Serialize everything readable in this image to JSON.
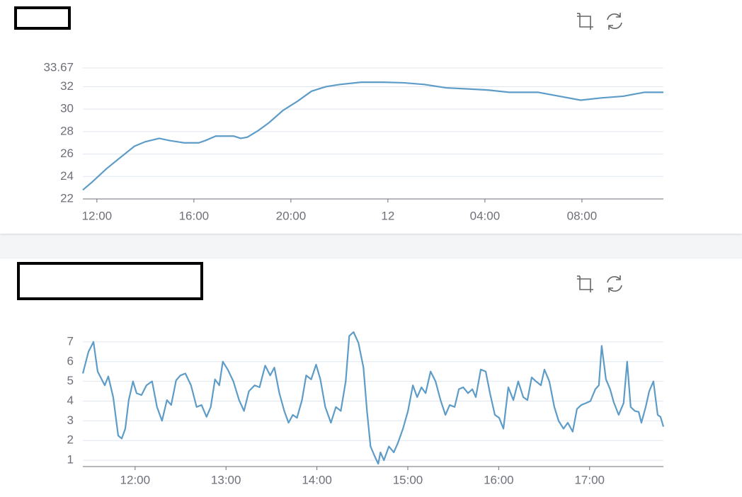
{
  "chart_data": [
    {
      "type": "line",
      "color": "#5e9cc8",
      "x": [
        11.42,
        11.8,
        12.4,
        12.97,
        13.55,
        14.0,
        14.57,
        15.0,
        15.6,
        16.2,
        16.47,
        16.9,
        17.64,
        17.93,
        18.2,
        18.66,
        19.1,
        19.68,
        20.27,
        20.85,
        21.44,
        22.02,
        22.9,
        23.8,
        24.65,
        25.5,
        26.4,
        27.3,
        28.15,
        29.0,
        30.2,
        31.07,
        31.95,
        32.8,
        33.7,
        34.57,
        35.36
      ],
      "values": [
        22.8,
        23.5,
        24.7,
        25.7,
        26.7,
        27.1,
        27.4,
        27.2,
        27.0,
        27.0,
        27.2,
        27.6,
        27.6,
        27.4,
        27.5,
        28.1,
        28.8,
        29.9,
        30.7,
        31.6,
        32.0,
        32.2,
        32.4,
        32.4,
        32.35,
        32.2,
        31.9,
        31.8,
        31.7,
        31.5,
        31.5,
        31.15,
        30.8,
        31.0,
        31.15,
        31.5,
        31.5
      ],
      "xlim": [
        11.42,
        35.36
      ],
      "xticks": [
        {
          "value": 12,
          "label": "12:00"
        },
        {
          "value": 16,
          "label": "16:00"
        },
        {
          "value": 20,
          "label": "20:00"
        },
        {
          "value": 24,
          "label": "12"
        },
        {
          "value": 28,
          "label": "04:00"
        },
        {
          "value": 32,
          "label": "08:00"
        }
      ],
      "ylim": [
        22,
        33.67
      ],
      "yticks": [
        22,
        24,
        26,
        28,
        30,
        32,
        33.67
      ],
      "grid": true
    },
    {
      "type": "line",
      "color": "#5e9cc8",
      "x": [
        11.425,
        11.487,
        11.542,
        11.588,
        11.666,
        11.705,
        11.759,
        11.814,
        11.853,
        11.892,
        11.93,
        11.977,
        12.016,
        12.07,
        12.125,
        12.187,
        12.241,
        12.296,
        12.35,
        12.397,
        12.451,
        12.498,
        12.553,
        12.615,
        12.677,
        12.731,
        12.786,
        12.832,
        12.879,
        12.926,
        12.965,
        13.019,
        13.081,
        13.144,
        13.198,
        13.252,
        13.315,
        13.369,
        13.431,
        13.486,
        13.532,
        13.587,
        13.641,
        13.688,
        13.735,
        13.781,
        13.836,
        13.882,
        13.937,
        13.991,
        14.038,
        14.092,
        14.154,
        14.209,
        14.263,
        14.317,
        14.356,
        14.403,
        14.457,
        14.512,
        14.551,
        14.59,
        14.636,
        14.675,
        14.699,
        14.737,
        14.792,
        14.846,
        14.893,
        14.947,
        15.002,
        15.056,
        15.103,
        15.15,
        15.196,
        15.251,
        15.305,
        15.36,
        15.414,
        15.461,
        15.515,
        15.562,
        15.609,
        15.663,
        15.71,
        15.748,
        15.803,
        15.857,
        15.904,
        15.958,
        16.005,
        16.052,
        16.106,
        16.161,
        16.215,
        16.27,
        16.316,
        16.363,
        16.41,
        16.464,
        16.503,
        16.557,
        16.612,
        16.659,
        16.713,
        16.76,
        16.814,
        16.861,
        16.908,
        16.962,
        17.009,
        17.063,
        17.102,
        17.133,
        17.18,
        17.226,
        17.265,
        17.32,
        17.374,
        17.413,
        17.452,
        17.498,
        17.54,
        17.57,
        17.617,
        17.656,
        17.702,
        17.749,
        17.78,
        17.812
      ],
      "values": [
        5.4,
        6.5,
        7.0,
        5.5,
        4.8,
        5.25,
        4.2,
        2.25,
        2.1,
        2.6,
        4.05,
        5.0,
        4.4,
        4.3,
        4.8,
        5.0,
        3.7,
        3.0,
        4.05,
        3.8,
        5.05,
        5.3,
        5.4,
        4.8,
        3.7,
        3.8,
        3.2,
        3.7,
        5.1,
        4.8,
        6.0,
        5.6,
        5.0,
        4.05,
        3.5,
        4.5,
        4.8,
        4.7,
        5.8,
        5.3,
        5.7,
        4.4,
        3.5,
        2.9,
        3.3,
        3.15,
        4.05,
        5.3,
        5.1,
        5.85,
        5.1,
        3.7,
        2.9,
        3.7,
        3.5,
        5.0,
        7.3,
        7.5,
        6.95,
        5.7,
        3.5,
        1.7,
        1.2,
        0.82,
        1.4,
        1.0,
        1.7,
        1.4,
        1.9,
        2.6,
        3.5,
        4.8,
        4.2,
        4.7,
        4.4,
        5.5,
        5.0,
        4.05,
        3.3,
        3.8,
        3.7,
        4.6,
        4.7,
        4.4,
        4.6,
        4.2,
        5.6,
        5.5,
        4.4,
        3.3,
        3.15,
        2.6,
        4.7,
        4.05,
        5.0,
        4.2,
        4.05,
        5.2,
        5.0,
        4.8,
        5.6,
        5.0,
        3.7,
        3.0,
        2.6,
        2.9,
        2.45,
        3.6,
        3.8,
        3.9,
        4.0,
        4.6,
        4.8,
        6.8,
        5.1,
        4.6,
        3.95,
        3.3,
        3.9,
        6.0,
        3.7,
        3.5,
        3.45,
        2.9,
        3.7,
        4.5,
        5.0,
        3.3,
        3.2,
        2.7
      ],
      "xlim": [
        11.425,
        17.812
      ],
      "xticks": [
        {
          "value": 12,
          "label": "12:00"
        },
        {
          "value": 13,
          "label": "13:00"
        },
        {
          "value": 14,
          "label": "14:00"
        },
        {
          "value": 15,
          "label": "15:00"
        },
        {
          "value": 16,
          "label": "16:00"
        },
        {
          "value": 17,
          "label": "17:00"
        }
      ],
      "ylim": [
        0.68,
        7.5
      ],
      "yticks": [
        1,
        2,
        3,
        4,
        5,
        6,
        7
      ],
      "grid": true
    }
  ]
}
